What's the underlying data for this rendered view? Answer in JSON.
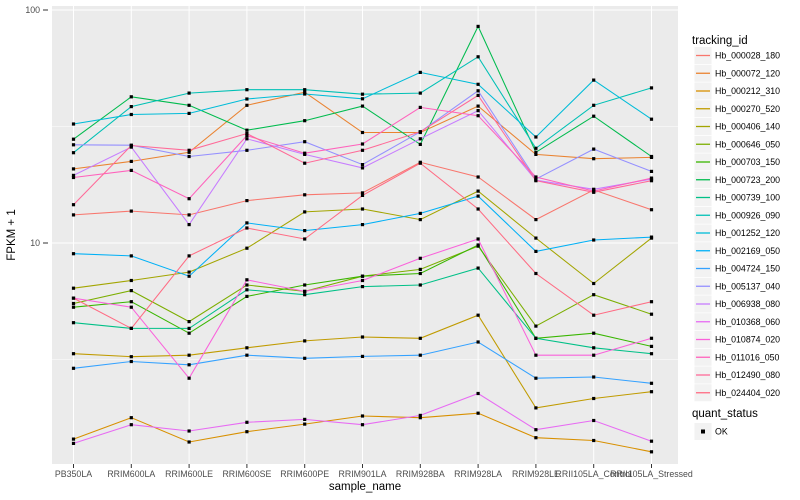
{
  "chart_data": {
    "type": "line",
    "title": "",
    "xlabel": "sample_name",
    "ylabel": "FPKM + 1",
    "y_scale": "log10",
    "y_axis_ticks": [
      {
        "label": "100",
        "value": 100
      },
      {
        "label": "10",
        "value": 10
      }
    ],
    "y_minor_gridlines": [
      31.62,
      3.162
    ],
    "ylim": [
      1.1,
      105
    ],
    "grid": "on",
    "legend_position": "right",
    "categories": [
      "PB350LA",
      "RRIM600LA",
      "RRIM600LE",
      "RRIM600SE",
      "RRIM600PE",
      "RRIM901LA",
      "RRIM928BA",
      "RRIM928LA",
      "RRIM928LE",
      "RRII105LA_Control",
      "RRII105LA_Stressed"
    ],
    "legend": {
      "title": "tracking_id"
    },
    "quant_legend": {
      "title": "quant_status",
      "items": [
        {
          "label": "OK",
          "marker": "black-square"
        }
      ]
    },
    "marker": {
      "shape": "square",
      "color": "#000000",
      "size": 3.2
    },
    "theme": {
      "panel_bg": "#EBEBEB",
      "grid_color": "#FFFFFF",
      "tick_text_color": "#4D4D4D",
      "axis_title_color": "#000000",
      "legend_key_bg": "#F2F2F2",
      "background": "#FFFFFF",
      "tick_mark_color": "#333333"
    },
    "series": [
      {
        "name": "Hb_000028_180",
        "color": "#F8766D",
        "values": [
          13.2,
          13.7,
          13.2,
          15.2,
          16.1,
          16.4,
          22.2,
          19.2,
          12.6,
          16.9,
          13.9
        ]
      },
      {
        "name": "Hb_000072_120",
        "color": "#EA8331",
        "values": [
          20.8,
          22.4,
          24.5,
          39.0,
          44.4,
          29.8,
          29.8,
          38.7,
          24.0,
          23.0,
          23.3
        ]
      },
      {
        "name": "Hb_000212_310",
        "color": "#D89000",
        "values": [
          1.44,
          1.78,
          1.4,
          1.55,
          1.67,
          1.81,
          1.78,
          1.86,
          1.46,
          1.42,
          1.27
        ]
      },
      {
        "name": "Hb_000270_520",
        "color": "#C09B00",
        "values": [
          3.35,
          3.25,
          3.3,
          3.55,
          3.8,
          3.95,
          3.9,
          4.9,
          1.96,
          2.15,
          2.3
        ]
      },
      {
        "name": "Hb_000406_140",
        "color": "#A3A500",
        "values": [
          6.4,
          6.9,
          7.5,
          9.5,
          13.6,
          14.0,
          12.6,
          16.7,
          10.5,
          6.7,
          10.5
        ]
      },
      {
        "name": "Hb_000646_050",
        "color": "#7CAE00",
        "values": [
          5.5,
          6.25,
          4.6,
          6.6,
          6.2,
          7.2,
          7.7,
          9.7,
          4.4,
          6.0,
          4.95
        ]
      },
      {
        "name": "Hb_000703_150",
        "color": "#39B600",
        "values": [
          5.3,
          5.6,
          4.1,
          5.9,
          6.6,
          7.2,
          7.4,
          9.8,
          3.9,
          4.1,
          3.6
        ]
      },
      {
        "name": "Hb_000723_200",
        "color": "#00BB4E",
        "values": [
          27.9,
          42.4,
          39.0,
          30.5,
          33.5,
          38.7,
          26.5,
          85.0,
          24.5,
          35.0,
          23.5
        ]
      },
      {
        "name": "Hb_000739_100",
        "color": "#00C087",
        "values": [
          4.55,
          4.3,
          4.3,
          6.3,
          6.0,
          6.5,
          6.6,
          7.8,
          3.9,
          3.55,
          3.35
        ]
      },
      {
        "name": "Hb_000926_090",
        "color": "#00C0B5",
        "values": [
          24.4,
          38.5,
          44.0,
          45.5,
          45.5,
          43.5,
          44.0,
          63.0,
          25.5,
          39.0,
          46.3
        ]
      },
      {
        "name": "Hb_001252_120",
        "color": "#00BCD8",
        "values": [
          32.4,
          35.6,
          36.0,
          41.5,
          43.6,
          41.6,
          54.0,
          48.0,
          28.5,
          50.0,
          34.0
        ]
      },
      {
        "name": "Hb_002169_050",
        "color": "#00B0F6",
        "values": [
          9.0,
          8.8,
          7.2,
          12.2,
          11.3,
          12.0,
          13.4,
          15.9,
          9.2,
          10.3,
          10.6
        ]
      },
      {
        "name": "Hb_004724_150",
        "color": "#35A2FF",
        "values": [
          2.9,
          3.1,
          3.0,
          3.3,
          3.2,
          3.26,
          3.3,
          3.76,
          2.63,
          2.66,
          2.5
        ]
      },
      {
        "name": "Hb_005137_040",
        "color": "#9590FF",
        "values": [
          26.4,
          26.3,
          23.5,
          25.0,
          27.2,
          21.7,
          30.0,
          45.0,
          18.8,
          25.3,
          20.3
        ]
      },
      {
        "name": "Hb_006938_080",
        "color": "#C77CFF",
        "values": [
          19.5,
          25.8,
          12.0,
          28.0,
          24.0,
          21.0,
          28.0,
          37.0,
          18.6,
          17.0,
          18.8
        ]
      },
      {
        "name": "Hb_010368_060",
        "color": "#E76BF3",
        "values": [
          1.38,
          1.66,
          1.56,
          1.7,
          1.75,
          1.66,
          1.82,
          2.26,
          1.58,
          1.73,
          1.41
        ]
      },
      {
        "name": "Hb_010874_020",
        "color": "#FA62DB",
        "values": [
          5.8,
          5.3,
          2.63,
          6.95,
          6.2,
          6.9,
          8.6,
          10.4,
          3.3,
          3.3,
          3.9
        ]
      },
      {
        "name": "Hb_011016_050",
        "color": "#FF62BC",
        "values": [
          19.1,
          20.5,
          15.5,
          28.9,
          24.3,
          26.6,
          38.2,
          35.2,
          19.2,
          16.7,
          19.0
        ]
      },
      {
        "name": "Hb_012490_080",
        "color": "#FF6A98",
        "values": [
          14.6,
          26.2,
          25.0,
          29.5,
          22.0,
          25.0,
          30.0,
          43.0,
          18.5,
          16.5,
          18.5
        ]
      },
      {
        "name": "Hb_024404_020",
        "color": "#FF6B83",
        "values": [
          5.8,
          4.3,
          8.8,
          11.6,
          10.4,
          16.0,
          22.0,
          14.0,
          7.4,
          4.9,
          5.6
        ]
      }
    ]
  }
}
